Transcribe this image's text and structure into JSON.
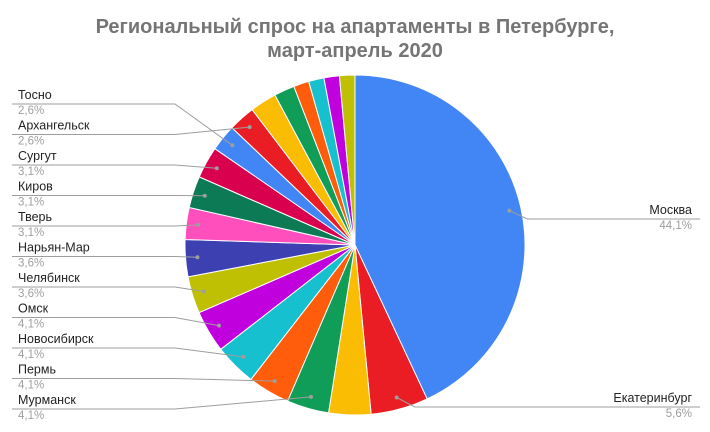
{
  "chart_data": {
    "type": "pie",
    "title_lines": [
      "Региональный спрос на апартаменты в Петербурге,",
      "март-апрель 2020"
    ],
    "slices": [
      {
        "label": "Москва",
        "value_label": "44,1%",
        "value": 44.1,
        "color": "#4285f4"
      },
      {
        "label": "Екатеринбург",
        "value_label": "5,6%",
        "value": 5.6,
        "color": "#ea1c24"
      },
      {
        "label": "",
        "value_label": "",
        "value": 4.1,
        "color": "#fbbc04"
      },
      {
        "label": "",
        "value_label": "",
        "value": 4.1,
        "color": "#0f9d58"
      },
      {
        "label": "",
        "value_label": "",
        "value": 4.1,
        "color": "#ff5d0b"
      },
      {
        "label": "",
        "value_label": "",
        "value": 4.1,
        "color": "#17c0ce"
      },
      {
        "label": "",
        "value_label": "",
        "value": 4.1,
        "color": "#c000dd"
      },
      {
        "label": "",
        "value_label": "",
        "value": 3.6,
        "color": "#bfc004"
      },
      {
        "label": "",
        "value_label": "",
        "value": 3.6,
        "color": "#3c40b0"
      },
      {
        "label": "",
        "value_label": "",
        "value": 3.1,
        "color": "#ff4fbd"
      },
      {
        "label": "",
        "value_label": "",
        "value": 3.1,
        "color": "#0b7a55"
      },
      {
        "label": "",
        "value_label": "",
        "value": 3.1,
        "color": "#d9004d"
      },
      {
        "label": "",
        "value_label": "",
        "value": 2.6,
        "color": "#4285f4"
      },
      {
        "label": "",
        "value_label": "",
        "value": 2.6,
        "color": "#ea1c24"
      },
      {
        "label": "",
        "value_label": "",
        "value": 2.6,
        "color": "#fbbc04"
      },
      {
        "label": "",
        "value_label": "",
        "value": 2.0,
        "color": "#0f9d58"
      },
      {
        "label": "",
        "value_label": "",
        "value": 1.5,
        "color": "#ff5d0b"
      },
      {
        "label": "",
        "value_label": "",
        "value": 1.5,
        "color": "#17c0ce"
      },
      {
        "label": "",
        "value_label": "",
        "value": 1.5,
        "color": "#c000dd"
      },
      {
        "label": "",
        "value_label": "",
        "value": 1.5,
        "color": "#bfc004"
      }
    ],
    "left_labels": [
      {
        "label": "Тосно",
        "value_label": "2,6%",
        "slice": 12
      },
      {
        "label": "Архангельск",
        "value_label": "2,6%",
        "slice": 13
      },
      {
        "label": "Сургут",
        "value_label": "3,1%",
        "slice": 11
      },
      {
        "label": "Киров",
        "value_label": "3,1%",
        "slice": 10
      },
      {
        "label": "Тверь",
        "value_label": "3,1%",
        "slice": 9
      },
      {
        "label": "Нарьян-Мар",
        "value_label": "3,6%",
        "slice": 8
      },
      {
        "label": "Челябинск",
        "value_label": "3,6%",
        "slice": 7
      },
      {
        "label": "Омск",
        "value_label": "4,1%",
        "slice": 6
      },
      {
        "label": "Новосибирск",
        "value_label": "4,1%",
        "slice": 5
      },
      {
        "label": "Пермь",
        "value_label": "4,1%",
        "slice": 4
      },
      {
        "label": "Мурманск",
        "value_label": "4,1%",
        "slice": 3
      }
    ],
    "legend": "labels with leader lines"
  }
}
